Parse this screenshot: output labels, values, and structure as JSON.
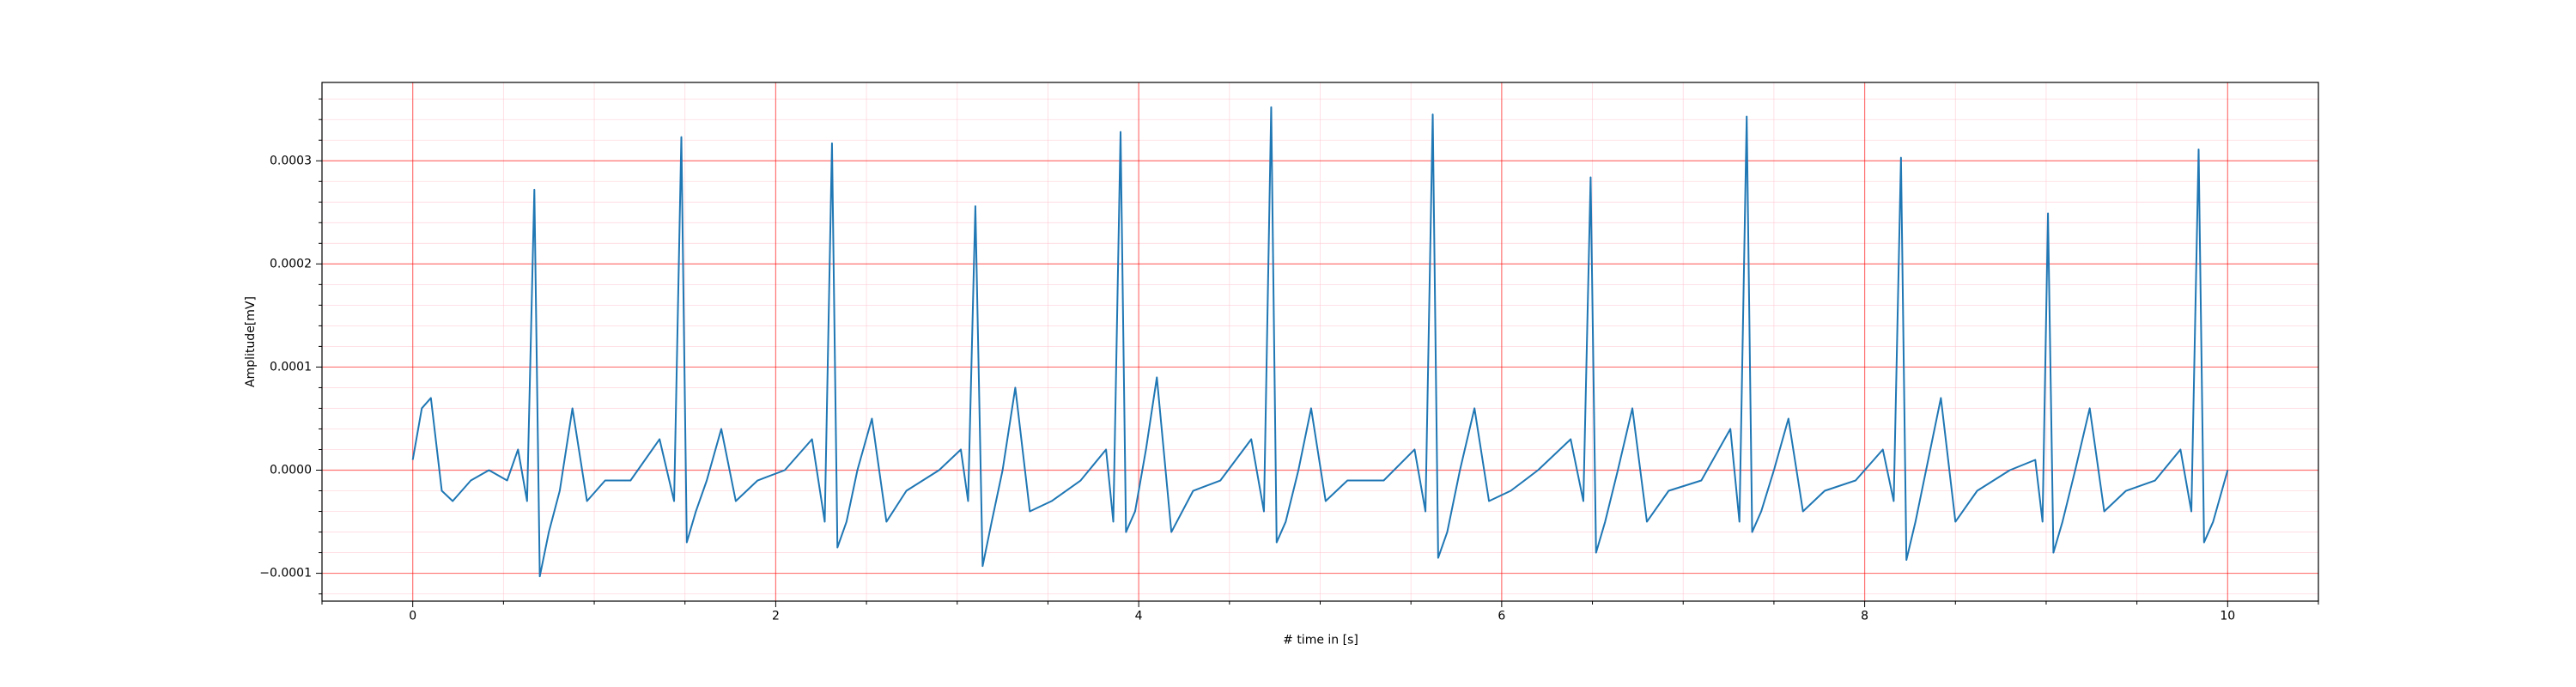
{
  "chart_data": {
    "type": "line",
    "xlabel": "# time in [s]",
    "ylabel": "Amplitude[mV]",
    "color": "#1f77b4",
    "grid": true,
    "xlim": [
      -0.5,
      10.5
    ],
    "xticks": [
      0,
      2,
      4,
      6,
      8,
      10
    ],
    "xminorticks": [
      -0.5,
      0.5,
      1,
      1.5,
      2.5,
      3,
      3.5,
      4.5,
      5,
      5.5,
      6.5,
      7,
      7.5,
      8.5,
      9,
      9.5,
      10.5
    ],
    "ylim": [
      -0.000127,
      0.000376
    ],
    "yticks": [
      {
        "value": -0.0001,
        "label": "−0.0001"
      },
      {
        "value": 0,
        "label": "0.0000"
      },
      {
        "value": 0.0001,
        "label": "0.0001"
      },
      {
        "value": 0.0002,
        "label": "0.0002"
      },
      {
        "value": 0.0003,
        "label": "0.0003"
      }
    ],
    "yminorticks": [
      -0.00012,
      -8e-05,
      -6e-05,
      -4e-05,
      -2e-05,
      2e-05,
      4e-05,
      6e-05,
      8e-05,
      0.00012,
      0.00014,
      0.00016,
      0.00018,
      0.00022,
      0.00024,
      0.00026,
      0.00028,
      0.00032,
      0.00034,
      0.00036
    ],
    "x": [
      0,
      0.05,
      0.1,
      0.16,
      0.22,
      0.32,
      0.42,
      0.52,
      0.58,
      0.63,
      0.67,
      0.7,
      0.75,
      0.81,
      0.88,
      0.96,
      1.06,
      1.2,
      1.36,
      1.44,
      1.48,
      1.51,
      1.56,
      1.62,
      1.7,
      1.78,
      1.9,
      2.05,
      2.2,
      2.27,
      2.31,
      2.34,
      2.39,
      2.45,
      2.53,
      2.61,
      2.72,
      2.9,
      3.02,
      3.06,
      3.1,
      3.14,
      3.19,
      3.25,
      3.32,
      3.4,
      3.52,
      3.68,
      3.82,
      3.86,
      3.9,
      3.93,
      3.98,
      4.04,
      4.1,
      4.18,
      4.3,
      4.45,
      4.62,
      4.69,
      4.73,
      4.76,
      4.81,
      4.88,
      4.95,
      5.03,
      5.15,
      5.35,
      5.52,
      5.58,
      5.62,
      5.65,
      5.7,
      5.77,
      5.85,
      5.93,
      6.05,
      6.2,
      6.38,
      6.45,
      6.49,
      6.52,
      6.57,
      6.64,
      6.72,
      6.8,
      6.92,
      7.1,
      7.26,
      7.31,
      7.35,
      7.38,
      7.43,
      7.5,
      7.58,
      7.66,
      7.78,
      7.95,
      8.1,
      8.16,
      8.2,
      8.23,
      8.28,
      8.35,
      8.42,
      8.5,
      8.62,
      8.8,
      8.94,
      8.98,
      9.01,
      9.04,
      9.09,
      9.16,
      9.24,
      9.32,
      9.44,
      9.6,
      9.74,
      9.8,
      9.84,
      9.87,
      9.92,
      10.0
    ],
    "values": [
      1e-05,
      6e-05,
      7e-05,
      -2e-05,
      -3e-05,
      -1e-05,
      0,
      -1e-05,
      2e-05,
      -3e-05,
      0.000272,
      -0.000103,
      -6e-05,
      -2e-05,
      6e-05,
      -3e-05,
      -1e-05,
      -1e-05,
      3e-05,
      -3e-05,
      0.000323,
      -7e-05,
      -4e-05,
      -1e-05,
      4e-05,
      -3e-05,
      -1e-05,
      0,
      3e-05,
      -5e-05,
      0.000317,
      -7.5e-05,
      -5e-05,
      0,
      5e-05,
      -5e-05,
      -2e-05,
      0,
      2e-05,
      -3e-05,
      0.000256,
      -9.3e-05,
      -5e-05,
      0,
      8e-05,
      -4e-05,
      -3e-05,
      -1e-05,
      2e-05,
      -5e-05,
      0.000328,
      -6e-05,
      -4e-05,
      2e-05,
      9e-05,
      -6e-05,
      -2e-05,
      -1e-05,
      3e-05,
      -4e-05,
      0.000352,
      -7e-05,
      -5e-05,
      0,
      6e-05,
      -3e-05,
      -1e-05,
      -1e-05,
      2e-05,
      -4e-05,
      0.000345,
      -8.5e-05,
      -6e-05,
      0,
      6e-05,
      -3e-05,
      -2e-05,
      0,
      3e-05,
      -3e-05,
      0.000284,
      -8e-05,
      -5e-05,
      0,
      6e-05,
      -5e-05,
      -2e-05,
      -1e-05,
      4e-05,
      -5e-05,
      0.000343,
      -6e-05,
      -4e-05,
      0,
      5e-05,
      -4e-05,
      -2e-05,
      -1e-05,
      2e-05,
      -3e-05,
      0.000303,
      -8.7e-05,
      -5e-05,
      1e-05,
      7e-05,
      -5e-05,
      -2e-05,
      0,
      1e-05,
      -5e-05,
      0.000249,
      -8e-05,
      -5e-05,
      0,
      6e-05,
      -4e-05,
      -2e-05,
      -1e-05,
      2e-05,
      -4e-05,
      0.000311,
      -7e-05,
      -5e-05,
      0
    ]
  }
}
